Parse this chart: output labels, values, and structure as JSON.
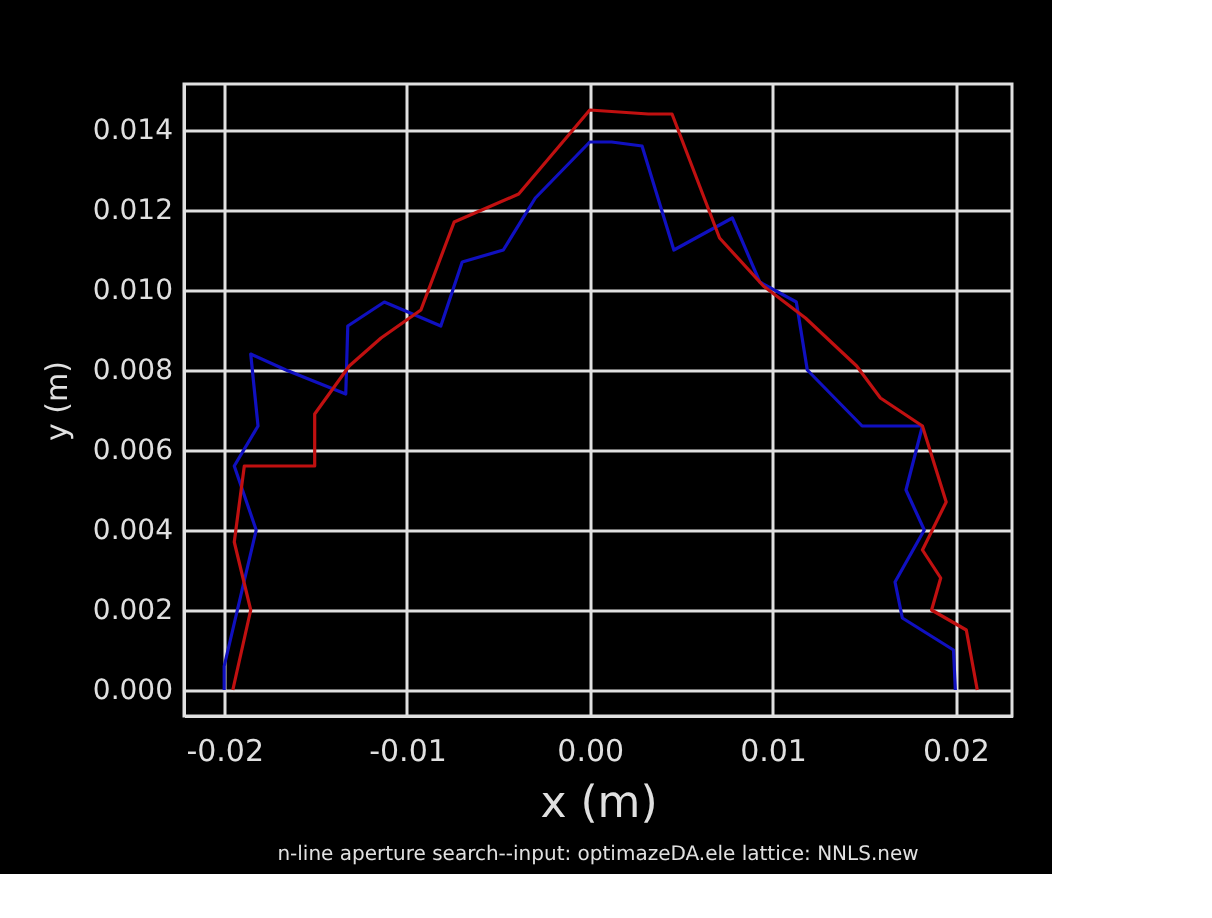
{
  "chart_data": {
    "type": "line",
    "xlabel": "x (m)",
    "ylabel": "y (m)",
    "annotations": [
      "n-line aperture search--input: optimazeDA.ele   lattice: NNLS.new"
    ],
    "xlim": [
      -0.0222,
      0.0231
    ],
    "ylim": [
      -0.00065,
      0.01515
    ],
    "xticks": [
      {
        "value": -0.02,
        "label": "-0.02"
      },
      {
        "value": -0.01,
        "label": "-0.01"
      },
      {
        "value": 0,
        "label": "0.00"
      },
      {
        "value": 0.01,
        "label": "0.01"
      },
      {
        "value": 0.02,
        "label": "0.02"
      }
    ],
    "yticks": [
      {
        "value": 0,
        "label": "0.000"
      },
      {
        "value": 0.002,
        "label": "0.002"
      },
      {
        "value": 0.004,
        "label": "0.004"
      },
      {
        "value": 0.006,
        "label": "0.006"
      },
      {
        "value": 0.008,
        "label": "0.008"
      },
      {
        "value": 0.01,
        "label": "0.010"
      },
      {
        "value": 0.012,
        "label": "0.012"
      },
      {
        "value": 0.014,
        "label": "0.014"
      }
    ],
    "grid": true,
    "legend": false,
    "marker": "none",
    "line_style": "solid",
    "series": [
      {
        "color": "#1010c0",
        "x": [
          -0.02,
          -0.02,
          -0.01825,
          -0.01945,
          -0.01815,
          -0.01855,
          -0.01662,
          -0.01335,
          -0.01324,
          -0.01124,
          -0.00815,
          -0.00698,
          -0.00473,
          -0.00298,
          0,
          0.0012,
          0.00286,
          0.0046,
          0.0078,
          0.0093,
          0.0113,
          0.0119,
          0.0149,
          0.0182,
          0.0173,
          0.0183,
          0.0167,
          0.0171,
          0.0199,
          0.02
        ],
        "values": [
          0,
          0.0006,
          0.004,
          0.0056,
          0.0066,
          0.0084,
          0.008,
          0.0074,
          0.0091,
          0.0097,
          0.0091,
          0.0107,
          0.011,
          0.0123,
          0.0137,
          0.0137,
          0.0136,
          0.011,
          0.0118,
          0.0102,
          0.0097,
          0.008,
          0.0066,
          0.0066,
          0.005,
          0.004,
          0.0027,
          0.0018,
          0.001,
          0
        ]
      },
      {
        "color": "#c01010",
        "x": [
          -0.01953,
          -0.01855,
          -0.01945,
          -0.0189,
          -0.01505,
          -0.01505,
          -0.01316,
          -0.01142,
          -0.00924,
          -0.00742,
          -0.00389,
          0,
          0.0032,
          0.0045,
          0.0071,
          0.0095,
          0.0118,
          0.0146,
          0.0159,
          0.0182,
          0.0195,
          0.0182,
          0.0192,
          0.0187,
          0.0206,
          0.0212
        ],
        "values": [
          0,
          0.002,
          0.0037,
          0.0056,
          0.0056,
          0.0069,
          0.0081,
          0.0088,
          0.0095,
          0.0117,
          0.0124,
          0.0145,
          0.0144,
          0.0144,
          0.0113,
          0.0101,
          0.0093,
          0.0081,
          0.0073,
          0.0066,
          0.0047,
          0.0035,
          0.0028,
          0.002,
          0.0015,
          0
        ]
      }
    ]
  }
}
